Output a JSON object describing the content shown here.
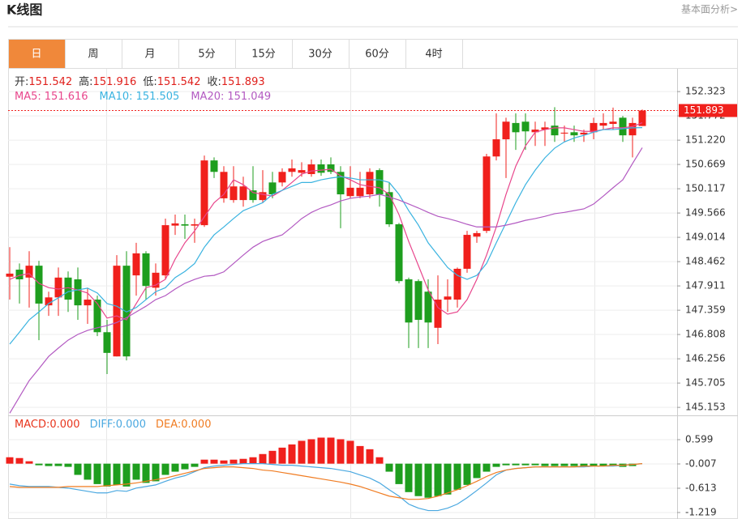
{
  "header": {
    "title": "K线图",
    "link": "基本面分析>"
  },
  "tabs": [
    "日",
    "周",
    "月",
    "5分",
    "15分",
    "30分",
    "60分",
    "4时"
  ],
  "active_tab": 0,
  "chart_data": [
    {
      "type": "candlestick",
      "ohlc_labels": [
        "开:",
        "高:",
        "低:",
        "收:"
      ],
      "open": [
        148.12,
        148.28,
        148.1,
        148.37,
        147.47,
        147.65,
        148.1,
        148.06,
        147.47,
        147.6,
        146.86,
        146.31,
        148.37,
        148.15,
        148.65,
        147.87,
        148.15,
        149.28,
        149.31,
        149.28,
        149.29,
        150.76,
        149.9,
        149.86,
        149.86,
        150.08,
        149.86,
        150.26,
        150.26,
        150.5,
        150.48,
        150.45,
        150.67,
        150.67,
        150.5,
        149.95,
        149.95,
        149.99,
        150.54,
        150.04,
        149.31,
        148.06,
        148.02,
        147.78,
        146.96,
        147.6,
        147.6,
        148.3,
        149.03,
        149.16,
        150.85,
        151.24,
        151.61,
        151.64,
        151.4,
        151.46,
        151.55,
        151.37,
        151.4,
        151.35,
        151.4,
        151.55,
        151.59,
        151.73,
        151.33,
        151.542
      ],
      "high": [
        148.79,
        148.42,
        148.7,
        148.48,
        147.78,
        148.33,
        148.24,
        148.33,
        147.87,
        147.69,
        147.14,
        148.61,
        148.7,
        148.89,
        148.7,
        148.42,
        149.44,
        149.53,
        149.53,
        149.44,
        150.87,
        150.83,
        150.63,
        150.63,
        150.39,
        150.63,
        150.54,
        150.5,
        150.58,
        150.78,
        150.72,
        150.78,
        150.78,
        150.83,
        150.63,
        150.63,
        150.5,
        150.58,
        150.58,
        150.26,
        149.34,
        148.1,
        148.06,
        148.06,
        148.15,
        148.06,
        148.33,
        149.16,
        149.16,
        150.91,
        151.83,
        151.73,
        151.83,
        151.83,
        151.64,
        151.64,
        151.97,
        151.55,
        151.55,
        151.46,
        151.73,
        151.83,
        151.96,
        151.77,
        151.73,
        151.916
      ],
      "low": [
        147.6,
        147.51,
        147.42,
        146.68,
        147.23,
        147.23,
        147.32,
        147.14,
        147.05,
        146.77,
        145.91,
        146.31,
        146.22,
        147.69,
        147.6,
        147.69,
        148.06,
        149.07,
        148.98,
        148.89,
        149.25,
        150.36,
        149.8,
        149.8,
        149.71,
        149.8,
        149.8,
        149.9,
        150.17,
        150.39,
        150.39,
        150.39,
        150.41,
        150.45,
        149.22,
        149.9,
        149.9,
        149.9,
        149.71,
        149.25,
        147.97,
        146.5,
        146.5,
        146.5,
        146.59,
        147.32,
        147.42,
        148.21,
        148.89,
        149.11,
        150.76,
        150.36,
        151.0,
        151.0,
        151.09,
        151.09,
        151.18,
        151.18,
        151.18,
        151.18,
        151.24,
        151.46,
        151.46,
        151.18,
        150.83,
        151.542
      ],
      "close": [
        148.19,
        148.06,
        148.37,
        147.51,
        147.65,
        148.1,
        147.6,
        147.47,
        147.6,
        146.86,
        146.39,
        148.37,
        146.31,
        148.65,
        147.91,
        148.21,
        149.29,
        149.33,
        149.28,
        149.31,
        150.76,
        150.5,
        150.5,
        150.17,
        150.17,
        149.86,
        150.04,
        149.99,
        150.5,
        150.58,
        150.54,
        150.67,
        150.48,
        150.5,
        149.99,
        150.14,
        150.14,
        150.5,
        149.99,
        149.31,
        148.02,
        147.08,
        147.14,
        147.08,
        147.6,
        147.67,
        148.3,
        149.07,
        149.11,
        150.85,
        151.24,
        151.64,
        151.4,
        151.42,
        151.46,
        151.51,
        151.33,
        151.39,
        151.33,
        151.39,
        151.61,
        151.61,
        151.64,
        151.33,
        151.61,
        151.893
      ],
      "up_color": "#f0201c",
      "down_color": "#1e9e1e",
      "value_color": "#e0201c",
      "series": [
        {
          "name": "MA5:",
          "color": "#e8468c",
          "values": [
            148.06,
            148.15,
            148.19,
            147.97,
            147.87,
            147.84,
            147.87,
            147.82,
            147.75,
            147.51,
            147.18,
            147.23,
            147.14,
            147.51,
            147.87,
            147.93,
            148.06,
            148.52,
            148.89,
            149.16,
            149.48,
            149.8,
            149.99,
            150.32,
            150.21,
            150.03,
            149.99,
            149.95,
            150.08,
            150.26,
            150.45,
            150.52,
            150.54,
            150.56,
            150.41,
            150.32,
            150.21,
            150.17,
            150.14,
            149.99,
            149.53,
            148.92,
            148.37,
            147.82,
            147.42,
            147.27,
            147.32,
            147.6,
            148.06,
            148.61,
            149.25,
            149.99,
            150.63,
            151.09,
            151.4,
            151.46,
            151.5,
            151.5,
            151.46,
            151.42,
            151.42,
            151.46,
            151.5,
            151.5,
            151.53,
            151.616
          ]
        },
        {
          "name": "MA10:",
          "color": "#3ab3e0",
          "values": [
            146.59,
            146.86,
            147.14,
            147.32,
            147.51,
            147.64,
            147.78,
            147.82,
            147.86,
            147.75,
            147.51,
            147.45,
            147.32,
            147.42,
            147.6,
            147.78,
            147.87,
            148.1,
            148.24,
            148.42,
            148.79,
            149.07,
            149.25,
            149.44,
            149.62,
            149.71,
            149.8,
            149.99,
            150.08,
            150.17,
            150.26,
            150.26,
            150.32,
            150.36,
            150.39,
            150.36,
            150.32,
            150.32,
            150.32,
            150.26,
            149.99,
            149.62,
            149.29,
            148.89,
            148.61,
            148.33,
            148.15,
            148.06,
            148.15,
            148.42,
            148.89,
            149.34,
            149.8,
            150.21,
            150.54,
            150.82,
            151.04,
            151.18,
            151.27,
            151.33,
            151.4,
            151.46,
            151.46,
            151.48,
            151.5,
            151.505
          ]
        },
        {
          "name": "MA20:",
          "color": "#b35ac2",
          "values": [
            145.02,
            145.39,
            145.76,
            146.03,
            146.31,
            146.5,
            146.68,
            146.81,
            146.9,
            146.96,
            147.01,
            147.08,
            147.19,
            147.32,
            147.45,
            147.6,
            147.69,
            147.84,
            147.97,
            148.06,
            148.13,
            148.15,
            148.23,
            148.42,
            148.61,
            148.79,
            148.92,
            149.0,
            149.07,
            149.25,
            149.44,
            149.58,
            149.68,
            149.75,
            149.84,
            149.9,
            149.93,
            149.95,
            149.99,
            149.93,
            149.86,
            149.77,
            149.68,
            149.58,
            149.49,
            149.44,
            149.38,
            149.31,
            149.25,
            149.25,
            149.25,
            149.29,
            149.34,
            149.4,
            149.44,
            149.49,
            149.55,
            149.58,
            149.62,
            149.66,
            149.77,
            149.95,
            150.14,
            150.32,
            150.69,
            151.049
          ]
        }
      ],
      "ylim": [
        144.99,
        152.84
      ],
      "yticks": [
        145.153,
        145.705,
        146.256,
        146.808,
        147.359,
        147.911,
        148.462,
        149.014,
        149.566,
        150.117,
        150.669,
        {
          "value": 151.22,
          "label": "151.220"
        },
        151.772,
        152.323
      ],
      "grid": true,
      "last_price_line": true
    },
    {
      "type": "macd",
      "series": [
        {
          "name": "MACD:",
          "kind": "bar",
          "color": "#e8341c",
          "up_color": "#f0201c",
          "down_color": "#1e9e1e",
          "legend_label": "0.000",
          "values": [
            0.16,
            0.14,
            0.06,
            -0.04,
            -0.06,
            -0.06,
            -0.08,
            -0.28,
            -0.4,
            -0.51,
            -0.57,
            -0.53,
            -0.57,
            -0.4,
            -0.48,
            -0.44,
            -0.28,
            -0.2,
            -0.14,
            -0.08,
            0.1,
            0.1,
            0.08,
            0.1,
            0.12,
            0.16,
            0.24,
            0.32,
            0.4,
            0.48,
            0.57,
            0.61,
            0.65,
            0.65,
            0.61,
            0.57,
            0.44,
            0.36,
            0.16,
            -0.2,
            -0.51,
            -0.71,
            -0.81,
            -0.85,
            -0.81,
            -0.77,
            -0.65,
            -0.53,
            -0.36,
            -0.2,
            -0.08,
            -0.04,
            -0.04,
            -0.04,
            -0.04,
            -0.06,
            -0.06,
            -0.06,
            -0.06,
            -0.06,
            -0.06,
            -0.06,
            -0.06,
            -0.08,
            -0.06,
            0
          ]
        },
        {
          "name": "DIFF:",
          "kind": "line",
          "color": "#4aa8e0",
          "legend_label": "0.000",
          "values": [
            -0.51,
            -0.55,
            -0.57,
            -0.57,
            -0.57,
            -0.59,
            -0.61,
            -0.65,
            -0.69,
            -0.73,
            -0.73,
            -0.67,
            -0.69,
            -0.61,
            -0.57,
            -0.53,
            -0.44,
            -0.36,
            -0.3,
            -0.2,
            -0.1,
            -0.06,
            -0.04,
            -0.02,
            0,
            0,
            0,
            -0.02,
            -0.04,
            -0.04,
            -0.06,
            -0.08,
            -0.1,
            -0.12,
            -0.16,
            -0.2,
            -0.28,
            -0.36,
            -0.48,
            -0.65,
            -0.81,
            -1.01,
            -1.11,
            -1.17,
            -1.17,
            -1.11,
            -1.01,
            -0.85,
            -0.67,
            -0.48,
            -0.28,
            -0.16,
            -0.12,
            -0.1,
            -0.08,
            -0.08,
            -0.08,
            -0.08,
            -0.08,
            -0.08,
            -0.06,
            -0.06,
            -0.06,
            -0.04,
            -0.02,
            0
          ]
        },
        {
          "name": "DEA:",
          "kind": "line",
          "color": "#f07c22",
          "legend_label": "0.000",
          "values": [
            -0.57,
            -0.59,
            -0.59,
            -0.59,
            -0.59,
            -0.59,
            -0.57,
            -0.57,
            -0.57,
            -0.57,
            -0.55,
            -0.53,
            -0.51,
            -0.48,
            -0.44,
            -0.4,
            -0.36,
            -0.3,
            -0.24,
            -0.18,
            -0.12,
            -0.1,
            -0.08,
            -0.08,
            -0.1,
            -0.12,
            -0.16,
            -0.18,
            -0.22,
            -0.26,
            -0.3,
            -0.34,
            -0.38,
            -0.42,
            -0.46,
            -0.51,
            -0.57,
            -0.65,
            -0.73,
            -0.81,
            -0.85,
            -0.89,
            -0.89,
            -0.87,
            -0.81,
            -0.73,
            -0.65,
            -0.55,
            -0.44,
            -0.32,
            -0.22,
            -0.16,
            -0.12,
            -0.1,
            -0.08,
            -0.08,
            -0.08,
            -0.08,
            -0.08,
            -0.06,
            -0.06,
            -0.06,
            -0.04,
            -0.04,
            -0.02,
            0
          ]
        }
      ],
      "ylim": [
        -1.381,
        1.165
      ],
      "yticks": [
        -1.219,
        -0.613,
        -0.007,
        0.599
      ],
      "grid": true
    }
  ]
}
